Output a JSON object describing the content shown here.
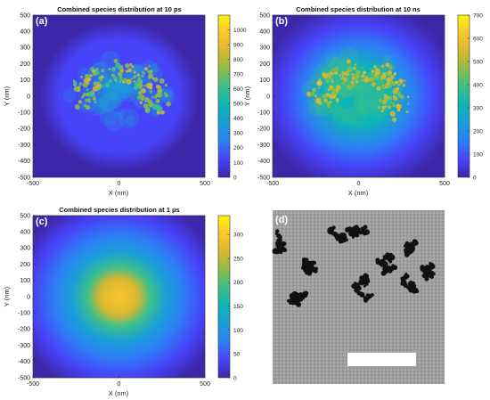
{
  "chart_data": [
    {
      "type": "heatmap",
      "panel_label": "(a)",
      "title": "Combined species distribution at 10 ps",
      "xlabel": "X (nm)",
      "ylabel": "Y (nm)",
      "xlim": [
        -500,
        500
      ],
      "ylim": [
        -500,
        500
      ],
      "xticks": [
        "-500",
        "0",
        "500"
      ],
      "yticks": [
        "500",
        "400",
        "300",
        "200",
        "100",
        "0",
        "-100",
        "-200",
        "-300",
        "-400",
        "-500"
      ],
      "colorbar": {
        "min": 0,
        "max": 1100,
        "ticks": [
          "1000",
          "900",
          "800",
          "700",
          "600",
          "500",
          "400",
          "300",
          "200",
          "100",
          "0"
        ],
        "tick_values": [
          1000,
          900,
          800,
          700,
          600,
          500,
          400,
          300,
          200,
          100,
          0
        ]
      },
      "background_level": 100,
      "distribution": "clustered blobs concentrated in the centre, peak ~800-1000 counts at small clusters near (-100..100, -50..150) nm"
    },
    {
      "type": "heatmap",
      "panel_label": "(b)",
      "title": "Combined species distribution at 10 ns",
      "xlabel": "X (nm)",
      "ylabel": "Y (nm)",
      "xlim": [
        -500,
        500
      ],
      "ylim": [
        -500,
        500
      ],
      "xticks": [
        "-500",
        "0",
        "500"
      ],
      "yticks": [
        "500",
        "400",
        "300",
        "200",
        "100",
        "0",
        "-100",
        "-200",
        "-300",
        "-400",
        "-500"
      ],
      "colorbar": {
        "min": 0,
        "max": 700,
        "ticks": [
          "700",
          "600",
          "500",
          "400",
          "300",
          "200",
          "100",
          "0"
        ],
        "tick_values": [
          700,
          600,
          500,
          400,
          300,
          200,
          100,
          0
        ]
      },
      "background_level": 60,
      "distribution": "broadened clusters, peak ~550-650 counts around (-50..50, 0..100) nm"
    },
    {
      "type": "heatmap",
      "panel_label": "(c)",
      "title": "Combined species distribution at 1 μs",
      "xlabel": "X (nm)",
      "ylabel": "Y (nm)",
      "xlim": [
        -500,
        500
      ],
      "ylim": [
        -500,
        500
      ],
      "xticks": [
        "-500",
        "0",
        "500"
      ],
      "yticks": [
        "500",
        "400",
        "300",
        "200",
        "100",
        "0",
        "-100",
        "-200",
        "-300",
        "-400",
        "-500"
      ],
      "colorbar": {
        "min": 0,
        "max": 340,
        "ticks": [
          "300",
          "250",
          "200",
          "150",
          "100",
          "50",
          "0"
        ],
        "tick_values": [
          300,
          250,
          200,
          150,
          100,
          50,
          0
        ]
      },
      "background_level": 10,
      "distribution": "smooth elliptical Gaussian centred near (0, 0) nm, peak ~280-320 counts"
    }
  ],
  "micrograph": {
    "panel_label": "(d)",
    "description_color_background": "#9c9c9c",
    "particle_color": "#111111",
    "scale_bar_color": "#ffffff"
  },
  "colors": {
    "colormap": [
      "#3e26a8",
      "#4743f8",
      "#2c80f5",
      "#1a9ed9",
      "#0cb5b5",
      "#3bbf8b",
      "#8bbd48",
      "#d9b730",
      "#fdc62e",
      "#f9f30b"
    ],
    "panel_letter": "#ffffff"
  }
}
